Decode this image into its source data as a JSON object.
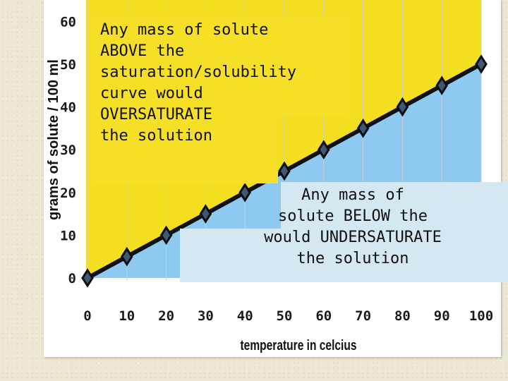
{
  "chart_data": {
    "type": "area",
    "x": [
      0,
      10,
      20,
      30,
      40,
      50,
      60,
      70,
      80,
      90,
      100
    ],
    "series": [
      {
        "values": [
          0,
          5,
          10,
          15,
          20,
          25,
          30,
          35,
          40,
          45,
          50
        ]
      }
    ],
    "xticks": [
      "0",
      "10",
      "20",
      "30",
      "40",
      "50",
      "60",
      "70",
      "80",
      "90",
      "100"
    ],
    "yticks": [
      "0",
      "10",
      "20",
      "30",
      "40",
      "50",
      "60"
    ],
    "xlabel": "temperature in celcius",
    "ylabel": "grams of solute / 100 ml",
    "xlim": [
      0,
      100
    ],
    "ylim": [
      0,
      65
    ],
    "grid": "vertical",
    "colors": {
      "above_fill": "#f3df1f",
      "below_fill": "#8ec9f2",
      "line": "#111111",
      "marker_fill": "#3f5873"
    }
  },
  "callouts": {
    "above": "Any mass of solute\nABOVE the\nsaturation/solubility\ncurve would\nOVERSATURATE\nthe solution",
    "below": "Any mass of\nsolute BELOW the\nwould UNDERSATURATE\nthe solution"
  }
}
